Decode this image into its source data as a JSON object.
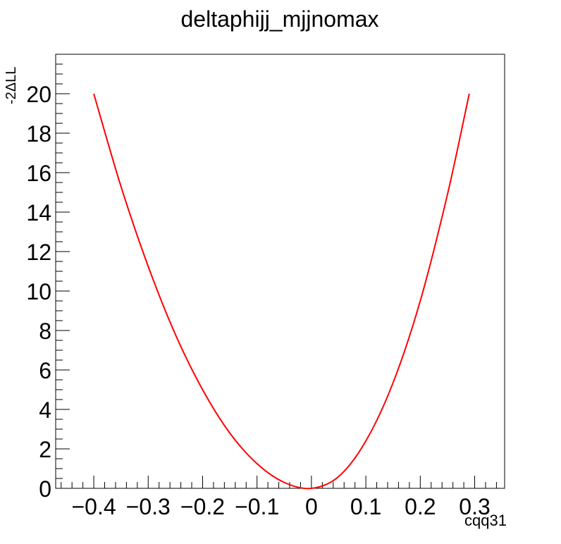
{
  "chart_data": {
    "type": "line",
    "title": "deltaphijj_mjjnomax",
    "xlabel": "cqq31",
    "ylabel": "-2ΔLL",
    "xlim": [
      -0.47,
      0.355
    ],
    "ylim": [
      0,
      22
    ],
    "x_major_ticks": [
      -0.4,
      -0.3,
      -0.2,
      -0.1,
      0,
      0.1,
      0.2,
      0.3
    ],
    "x_tick_labels": [
      "−0.4",
      "−0.3",
      "−0.2",
      "−0.1",
      "0",
      "0.1",
      "0.2",
      "0.3"
    ],
    "y_major_ticks": [
      0,
      2,
      4,
      6,
      8,
      10,
      12,
      14,
      16,
      18,
      20
    ],
    "y_tick_labels": [
      "0",
      "2",
      "4",
      "6",
      "8",
      "10",
      "12",
      "14",
      "16",
      "18",
      "20"
    ],
    "grid": false,
    "legend": "none",
    "series": [
      {
        "color": "#ff0000",
        "x": [
          -0.4,
          -0.35,
          -0.3,
          -0.25,
          -0.2,
          -0.15,
          -0.1,
          -0.05,
          0,
          0.05,
          0.1,
          0.15,
          0.2,
          0.25,
          0.29
        ],
        "y": [
          20,
          15.3,
          11.25,
          7.8,
          5.0,
          2.8,
          1.25,
          0.3,
          0,
          0.6,
          2.4,
          5.35,
          9.5,
          14.9,
          20
        ]
      }
    ]
  }
}
